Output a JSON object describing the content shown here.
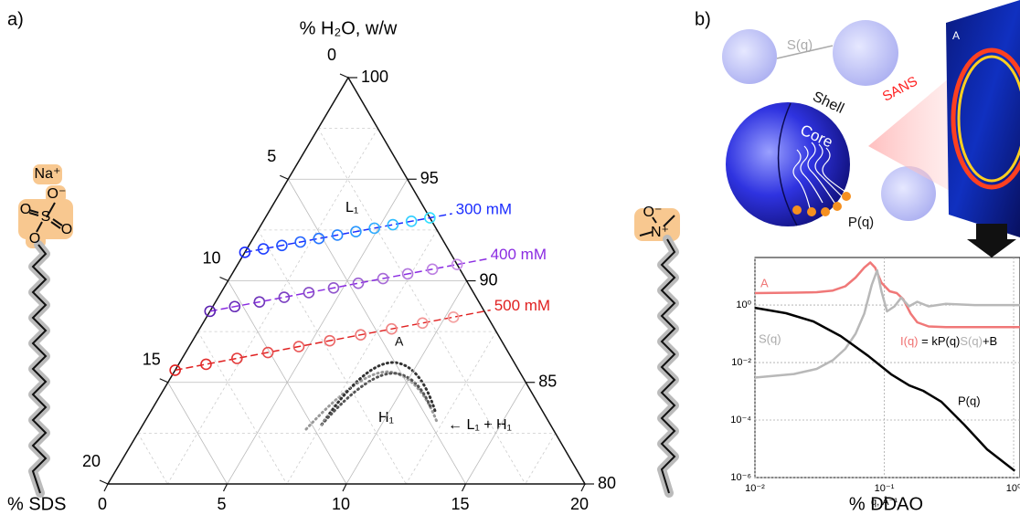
{
  "panel_a": {
    "label": "a)",
    "top_label": "% H₂O, w/w",
    "left_label": "% SDS",
    "right_label": "% DDAO",
    "ticks": [
      0,
      5,
      10,
      15,
      20
    ],
    "minor_grid": [
      2.5,
      7.5,
      12.5,
      17.5
    ],
    "water_ticks": [
      100,
      95,
      90,
      85,
      80
    ],
    "series": [
      {
        "name": "300 mM",
        "colors": [
          "#1a2cff",
          "#33e0ff"
        ],
        "label_color": "#1a2cff",
        "sds": [
          8.6,
          7.74,
          6.88,
          6.02,
          5.16,
          4.3,
          3.44,
          2.58,
          1.72,
          0.86,
          0
        ],
        "ddao": [
          0,
          0.69,
          1.38,
          2.07,
          2.76,
          3.45,
          4.14,
          4.83,
          5.52,
          6.21,
          6.9
        ]
      },
      {
        "name": "400 mM",
        "colors": [
          "#5a1fb0",
          "#c88ce8"
        ],
        "label_color": "#8a2be2",
        "sds": [
          11.5,
          10.35,
          9.2,
          8.05,
          6.9,
          5.75,
          4.6,
          3.45,
          2.3,
          1.15,
          0
        ],
        "ddao": [
          0,
          0.92,
          1.84,
          2.76,
          3.68,
          4.6,
          5.52,
          6.44,
          7.36,
          8.28,
          9.2
        ]
      },
      {
        "name": "500 mM",
        "colors": [
          "#e02020",
          "#f4a0a0"
        ],
        "label_color": "#e02020",
        "sds": [
          14.4,
          12.96,
          11.52,
          10.08,
          8.64,
          7.2,
          5.76,
          4.32,
          2.88,
          1.44
        ],
        "ddao": [
          0,
          1.15,
          2.3,
          3.45,
          4.6,
          5.75,
          6.9,
          8.05,
          9.2,
          10.35
        ]
      }
    ],
    "region_labels": [
      "L₁",
      "A",
      "H₁",
      "← L₁ + H₁"
    ],
    "sds_atoms": [
      "Na⁺",
      "O⁻",
      "O",
      "S",
      "O",
      "O"
    ],
    "ddao_atoms": [
      "O⁻",
      "N⁺"
    ]
  },
  "panel_b": {
    "label": "b)",
    "texts": [
      "S(q)",
      "Shell",
      "Core",
      "P(q)",
      "SANS",
      "A"
    ],
    "plot": {
      "type": "line",
      "x_label": "q, Å⁻¹",
      "log_x": true,
      "log_y": true,
      "xlim": [
        0.01,
        1.12
      ],
      "ylim": [
        1e-06,
        45
      ],
      "xticks": [
        {
          "value": 0.01,
          "label": "10⁻²"
        },
        {
          "value": 0.1,
          "label": "10⁻¹"
        },
        {
          "value": 1,
          "label": "10⁰"
        }
      ],
      "yticks": [
        {
          "value": 1,
          "label": "10⁰"
        },
        {
          "value": 0.01,
          "label": "10⁻²"
        },
        {
          "value": 0.0001,
          "label": "10⁻⁴"
        },
        {
          "value": 1e-06,
          "label": "10⁻⁶"
        }
      ],
      "equation_parts": [
        "I(q)",
        " = kP(q)",
        "S(q)",
        "+B"
      ],
      "equation_colors": [
        "#f07070",
        "#000000",
        "#b0b0b0",
        "#000000"
      ],
      "series": [
        {
          "name": "A",
          "color": "#f07878",
          "x": [
            0.01,
            0.02,
            0.03,
            0.04,
            0.05,
            0.06,
            0.07,
            0.078,
            0.085,
            0.095,
            0.11,
            0.125,
            0.14,
            0.16,
            0.18,
            0.22,
            0.3,
            0.5,
            1.12
          ],
          "values": [
            2.6,
            2.7,
            2.8,
            3.2,
            4.5,
            9,
            20,
            30,
            20,
            6,
            3,
            2.6,
            1.6,
            0.5,
            0.25,
            0.18,
            0.17,
            0.17,
            0.17
          ]
        },
        {
          "name": "S(q)",
          "color": "#b8b8b8",
          "x": [
            0.01,
            0.02,
            0.03,
            0.04,
            0.05,
            0.06,
            0.07,
            0.08,
            0.088,
            0.095,
            0.105,
            0.12,
            0.135,
            0.155,
            0.18,
            0.22,
            0.3,
            0.5,
            1.12
          ],
          "values": [
            0.003,
            0.004,
            0.006,
            0.012,
            0.03,
            0.1,
            0.5,
            5,
            16,
            3,
            0.6,
            0.9,
            1.8,
            0.9,
            1.3,
            0.9,
            1.1,
            1,
            1
          ]
        },
        {
          "name": "P(q)",
          "color": "#000000",
          "x": [
            0.01,
            0.0174,
            0.0283,
            0.0461,
            0.0752,
            0.113,
            0.156,
            0.2,
            0.277,
            0.415,
            0.624,
            1.02
          ],
          "values": [
            0.8,
            0.52,
            0.27,
            0.083,
            0.017,
            0.0039,
            0.0016,
            0.00104,
            0.00043,
            6.9e-05,
            9.6e-06,
            1.7e-06
          ]
        }
      ]
    }
  }
}
